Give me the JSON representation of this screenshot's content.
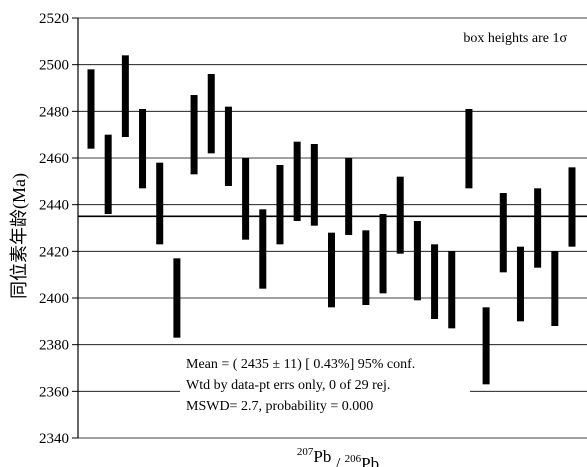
{
  "chart_data": {
    "type": "error-bar-boxes",
    "title": "",
    "xlabel": {
      "parts": [
        {
          "text": "207",
          "sup": true
        },
        {
          "text": "Pb",
          "sup": false
        },
        {
          "text": " / ",
          "sup": false
        },
        {
          "text": "206",
          "sup": true
        },
        {
          "text": "Pb",
          "sup": false
        }
      ]
    },
    "ylabel": "同位素年龄(Ma)",
    "ylim": [
      2340,
      2520
    ],
    "yticks": [
      2340,
      2360,
      2380,
      2400,
      2420,
      2440,
      2460,
      2480,
      2500,
      2520
    ],
    "grid": "horizontal",
    "reference_line": 2435,
    "note": "box heights are 1σ",
    "stats_lines": [
      "Mean = ( 2435 ± 11) [ 0.43%] 95% conf.",
      "Wtd by data-pt errs only, 0 of 29 rej.",
      "MSWD= 2.7, probability = 0.000"
    ],
    "series": [
      {
        "boxes": [
          {
            "low": 2464,
            "high": 2498
          },
          {
            "low": 2436,
            "high": 2470
          },
          {
            "low": 2469,
            "high": 2504
          },
          {
            "low": 2447,
            "high": 2481
          },
          {
            "low": 2423,
            "high": 2458
          },
          {
            "low": 2383,
            "high": 2417
          },
          {
            "low": 2453,
            "high": 2487
          },
          {
            "low": 2462,
            "high": 2496
          },
          {
            "low": 2448,
            "high": 2482
          },
          {
            "low": 2425,
            "high": 2460
          },
          {
            "low": 2404,
            "high": 2438
          },
          {
            "low": 2423,
            "high": 2457
          },
          {
            "low": 2433,
            "high": 2467
          },
          {
            "low": 2431,
            "high": 2466
          },
          {
            "low": 2396,
            "high": 2428
          },
          {
            "low": 2427,
            "high": 2460
          },
          {
            "low": 2397,
            "high": 2429
          },
          {
            "low": 2402,
            "high": 2436
          },
          {
            "low": 2419,
            "high": 2452
          },
          {
            "low": 2399,
            "high": 2433
          },
          {
            "low": 2391,
            "high": 2423
          },
          {
            "low": 2387,
            "high": 2420
          },
          {
            "low": 2447,
            "high": 2481
          },
          {
            "low": 2363,
            "high": 2396
          },
          {
            "low": 2411,
            "high": 2445
          },
          {
            "low": 2390,
            "high": 2422
          },
          {
            "low": 2413,
            "high": 2447
          },
          {
            "low": 2388,
            "high": 2420
          },
          {
            "low": 2422,
            "high": 2456
          }
        ]
      }
    ]
  }
}
